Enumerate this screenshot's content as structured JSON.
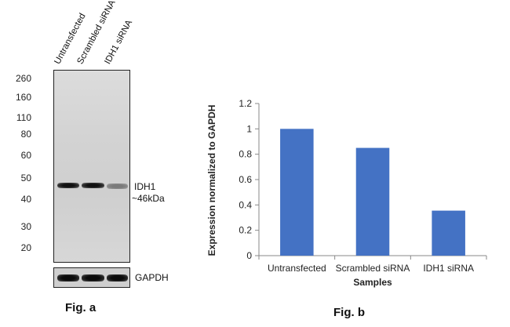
{
  "western_blot": {
    "lanes": [
      "Untransfected",
      "Scrambled siRNA",
      "IDH1 siRNA"
    ],
    "mw_markers": [
      "260",
      "160",
      "110",
      "80",
      "60",
      "50",
      "40",
      "30",
      "20"
    ],
    "band_label": "IDH1",
    "band_size": "~46kDa",
    "loading_control": "GAPDH",
    "caption": "Fig. a"
  },
  "chart_data": {
    "type": "bar",
    "categories": [
      "Untransfected",
      "Scrambled siRNA",
      "IDH1 siRNA"
    ],
    "values": [
      1.0,
      0.85,
      0.355
    ],
    "xlabel": "Samples",
    "ylabel": "Expression normalized to GAPDH",
    "ylim": [
      0,
      1.2
    ],
    "yticks": [
      "0",
      "0.2",
      "0.4",
      "0.6",
      "0.8",
      "1",
      "1.2"
    ],
    "bar_color": "#4472C4",
    "grid": false,
    "legend": "none"
  },
  "chart_caption": "Fig. b"
}
